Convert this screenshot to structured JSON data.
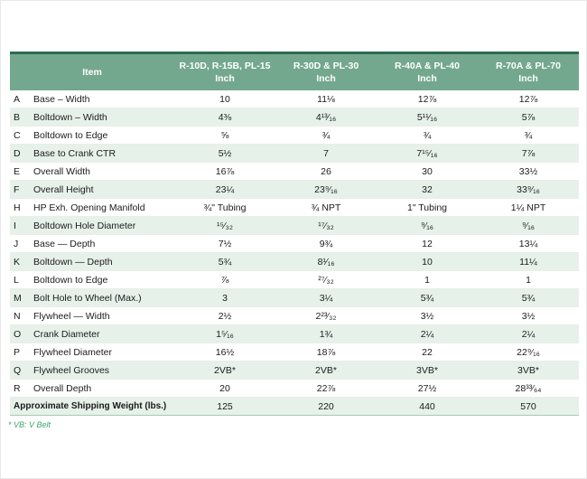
{
  "note": "* VB: V Belt",
  "colors": {
    "header_bg": "#73A88E",
    "header_text": "#FFFFFF",
    "top_border": "#2E6B50",
    "row_alt_bg": "#E6F1EA",
    "row_bg": "#FFFFFF",
    "note_text": "#3DA36C",
    "body_text": "#1B1B1B"
  },
  "table": {
    "item_header": "Item",
    "unit_label": "Inch",
    "columns": [
      "R-10D, R-15B, PL-15",
      "R-30D & PL-30",
      "R-40A & PL-40",
      "R-70A & PL-70"
    ],
    "rows": [
      {
        "letter": "A",
        "item": "Base – Width",
        "values": [
          "10",
          "11⅛",
          "12⅞",
          "12⅞"
        ]
      },
      {
        "letter": "B",
        "item": "Boltdown – Width",
        "values": [
          "4⅜",
          "4¹³⁄₁₆",
          "5¹¹⁄₁₆",
          "5⅞"
        ]
      },
      {
        "letter": "C",
        "item": "Boltdown to Edge",
        "values": [
          "⅝",
          "¾",
          "¾",
          "¾"
        ]
      },
      {
        "letter": "D",
        "item": "Base to Crank CTR",
        "values": [
          "5½",
          "7",
          "7¹⁵⁄₁₆",
          "7⅞"
        ]
      },
      {
        "letter": "E",
        "item": "Overall Width",
        "values": [
          "16⅞",
          "26",
          "30",
          "33½"
        ]
      },
      {
        "letter": "F",
        "item": "Overall Height",
        "values": [
          "23¼",
          "23⁹⁄₁₆",
          "32",
          "33⁹⁄₁₆"
        ]
      },
      {
        "letter": "H",
        "item": "HP Exh. Opening Manifold",
        "values": [
          "¾\" Tubing",
          "¾ NPT",
          "1\" Tubing",
          "1¼ NPT"
        ]
      },
      {
        "letter": "I",
        "item": "Boltdown Hole Diameter",
        "values": [
          "¹⁵⁄₃₂",
          "¹⁷⁄₃₂",
          "⁹⁄₁₆",
          "⁹⁄₁₆"
        ]
      },
      {
        "letter": "J",
        "item": "Base — Depth",
        "values": [
          "7½",
          "9¾",
          "12",
          "13¼"
        ]
      },
      {
        "letter": "K",
        "item": "Boltdown — Depth",
        "values": [
          "5¾",
          "8¹⁄₁₆",
          "10",
          "11¼"
        ]
      },
      {
        "letter": "L",
        "item": "Boltdown to Edge",
        "values": [
          "⅞",
          "²⁷⁄₃₂",
          "1",
          "1"
        ]
      },
      {
        "letter": "M",
        "item": "Bolt Hole to Wheel (Max.)",
        "values": [
          "3",
          "3¼",
          "5¾",
          "5¾"
        ]
      },
      {
        "letter": "N",
        "item": "Flywheel — Width",
        "values": [
          "2½",
          "2²³⁄₃₂",
          "3½",
          "3½"
        ]
      },
      {
        "letter": "O",
        "item": "Crank Diameter",
        "values": [
          "1⁵⁄₁₆",
          "1¾",
          "2¼",
          "2¼"
        ]
      },
      {
        "letter": "P",
        "item": "Flywheel Diameter",
        "values": [
          "16½",
          "18⅞",
          "22",
          "22⁹⁄₁₆"
        ]
      },
      {
        "letter": "Q",
        "item": "Flywheel Grooves",
        "values": [
          "2VB*",
          "2VB*",
          "3VB*",
          "3VB*"
        ]
      },
      {
        "letter": "R",
        "item": "Overall Depth",
        "values": [
          "20",
          "22⅞",
          "27½",
          "28³³⁄₆₄"
        ]
      }
    ],
    "footer_row": {
      "label": "Approximate Shipping Weight (lbs.)",
      "values": [
        "125",
        "220",
        "440",
        "570"
      ]
    }
  },
  "chart_data": {
    "type": "table",
    "title": "",
    "columns": [
      "Item",
      "R-10D, R-15B, PL-15 (Inch)",
      "R-30D & PL-30 (Inch)",
      "R-40A & PL-40 (Inch)",
      "R-70A & PL-70 (Inch)"
    ],
    "rows": [
      [
        "A",
        "Base – Width",
        "10",
        "11⅛",
        "12⅞",
        "12⅞"
      ],
      [
        "B",
        "Boltdown – Width",
        "4⅜",
        "4¹³⁄₁₆",
        "5¹¹⁄₁₆",
        "5⅞"
      ],
      [
        "C",
        "Boltdown to Edge",
        "⅝",
        "¾",
        "¾",
        "¾"
      ],
      [
        "D",
        "Base to Crank CTR",
        "5½",
        "7",
        "7¹⁵⁄₁₆",
        "7⅞"
      ],
      [
        "E",
        "Overall Width",
        "16⅞",
        "26",
        "30",
        "33½"
      ],
      [
        "F",
        "Overall Height",
        "23¼",
        "23⁹⁄₁₆",
        "32",
        "33⁹⁄₁₆"
      ],
      [
        "H",
        "HP Exh. Opening Manifold",
        "¾\" Tubing",
        "¾ NPT",
        "1\" Tubing",
        "1¼ NPT"
      ],
      [
        "I",
        "Boltdown Hole Diameter",
        "¹⁵⁄₃₂",
        "¹⁷⁄₃₂",
        "⁹⁄₁₆",
        "⁹⁄₁₆"
      ],
      [
        "J",
        "Base — Depth",
        "7½",
        "9¾",
        "12",
        "13¼"
      ],
      [
        "K",
        "Boltdown — Depth",
        "5¾",
        "8¹⁄₁₆",
        "10",
        "11¼"
      ],
      [
        "L",
        "Boltdown to Edge",
        "⅞",
        "²⁷⁄₃₂",
        "1",
        "1"
      ],
      [
        "M",
        "Bolt Hole to Wheel (Max.)",
        "3",
        "3¼",
        "5¾",
        "5¾"
      ],
      [
        "N",
        "Flywheel — Width",
        "2½",
        "2²³⁄₃₂",
        "3½",
        "3½"
      ],
      [
        "O",
        "Crank Diameter",
        "1⁵⁄₁₆",
        "1¾",
        "2¼",
        "2¼"
      ],
      [
        "P",
        "Flywheel Diameter",
        "16½",
        "18⅞",
        "22",
        "22⁹⁄₁₆"
      ],
      [
        "Q",
        "Flywheel Grooves",
        "2VB*",
        "2VB*",
        "3VB*",
        "3VB*"
      ],
      [
        "R",
        "Overall Depth",
        "20",
        "22⅞",
        "27½",
        "28³³⁄₆₄"
      ],
      [
        "",
        "Approximate Shipping Weight (lbs.)",
        "125",
        "220",
        "440",
        "570"
      ]
    ]
  }
}
